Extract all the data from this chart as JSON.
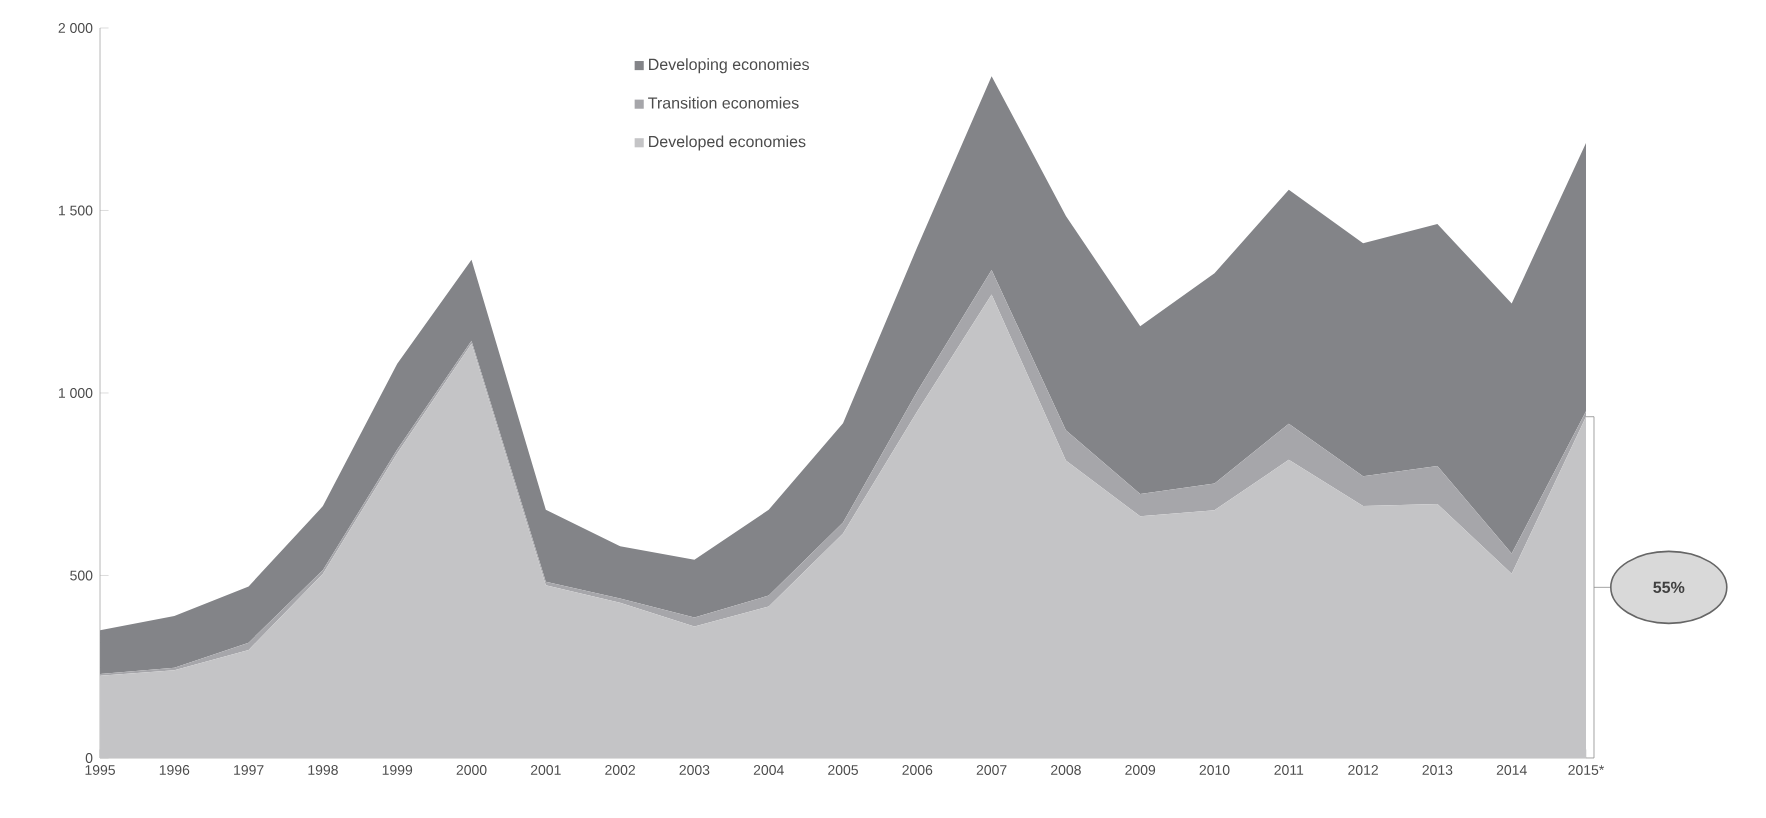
{
  "chart_data": {
    "type": "area",
    "stacked": true,
    "categories": [
      "1995",
      "1996",
      "1997",
      "1998",
      "1999",
      "2000",
      "2001",
      "2002",
      "2003",
      "2004",
      "2005",
      "2006",
      "2007",
      "2008",
      "2009",
      "2010",
      "2011",
      "2012",
      "2013",
      "2014",
      "2015*"
    ],
    "series": [
      {
        "name": "Developed economies",
        "color": "#c4c4c6",
        "values": [
          225,
          240,
          296,
          505,
          835,
          1135,
          473,
          425,
          360,
          415,
          615,
          950,
          1270,
          815,
          662,
          679,
          817,
          690,
          696,
          505,
          935
        ]
      },
      {
        "name": "Transition economies",
        "color": "#a6a6aa",
        "values": [
          5,
          7,
          20,
          10,
          10,
          8,
          10,
          12,
          25,
          30,
          30,
          55,
          67,
          83,
          61,
          73,
          99,
          82,
          104,
          55,
          15
        ]
      },
      {
        "name": "Developing economies",
        "color": "#838488",
        "values": [
          120,
          142,
          154,
          175,
          235,
          222,
          197,
          143,
          158,
          235,
          272,
          395,
          531,
          587,
          460,
          576,
          641,
          638,
          663,
          685,
          735
        ]
      }
    ],
    "ylim": [
      0,
      2000
    ],
    "yticks": [
      0,
      500,
      {
        "value": 1000,
        "label": "1 000"
      },
      {
        "value": 1500,
        "label": "1 500"
      },
      {
        "value": 2000,
        "label": "2 000"
      }
    ],
    "legend": "top",
    "annotations": [
      "55%"
    ]
  }
}
